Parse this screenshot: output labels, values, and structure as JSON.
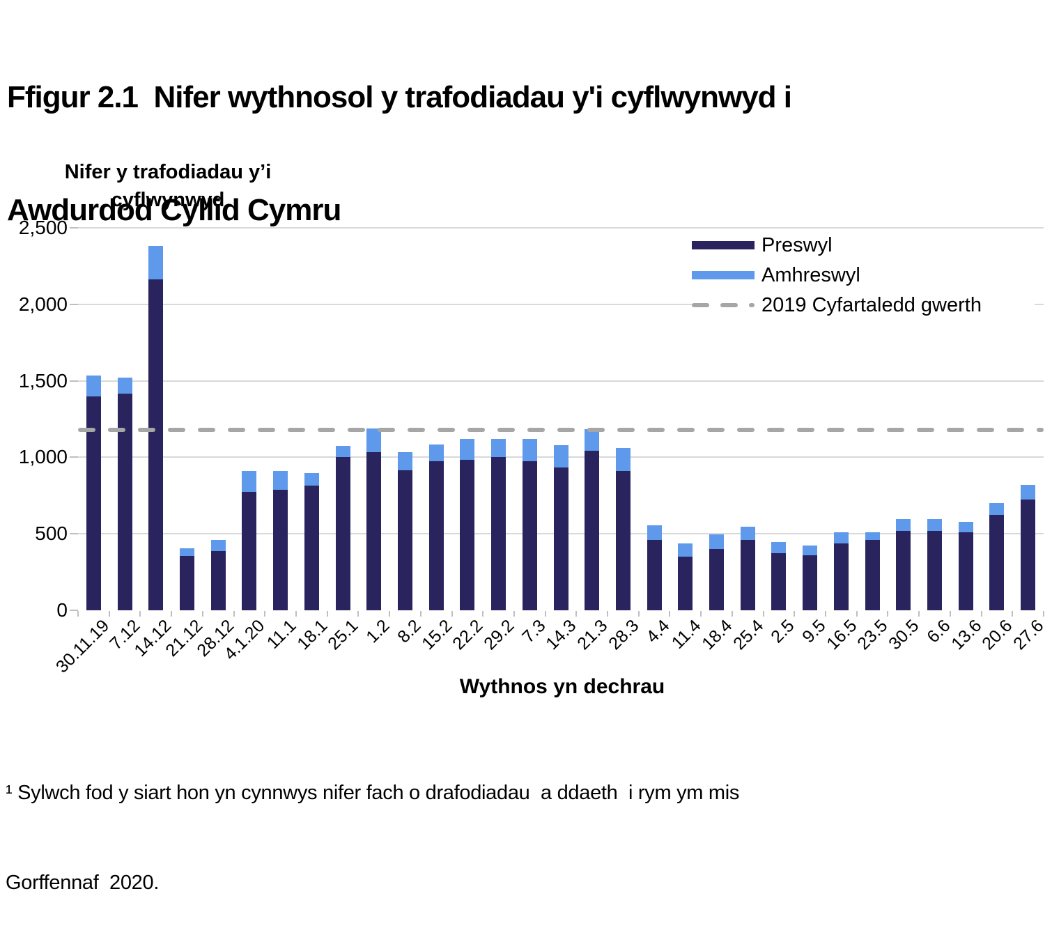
{
  "page": {
    "title_line1": "Ffigur 2.1  Nifer wythnosol y trafodiadau y'i cyflwynwyd i",
    "title_line2": "Awdurdod Cyllid Cymru",
    "footnote_line1": "¹ Sylwch fod y siart hon yn cynnwys nifer fach o drafodiadau  a ddaeth  i rym ym mis",
    "footnote_line2": "Gorffennaf  2020."
  },
  "chart_data": {
    "type": "bar",
    "stacked": true,
    "y_axis_title_line1": "Nifer y trafodiadau y’i",
    "y_axis_title_line2": "cyflwynwyd",
    "x_axis_title": "Wythnos yn dechrau",
    "ylim": [
      0,
      2500
    ],
    "ytick_step": 500,
    "ytick_labels": [
      "0",
      "500",
      "1,000",
      "1,500",
      "2,000",
      "2,500"
    ],
    "grid": true,
    "legend_position": "top-right",
    "categories": [
      "30.11.19",
      "7.12",
      "14.12",
      "21.12",
      "28.12",
      "4.1.20",
      "11.1",
      "18.1",
      "25.1",
      "1.2",
      "8.2",
      "15.2",
      "22.2",
      "29.2",
      "7.3",
      "14.3",
      "21.3",
      "28.3",
      "4.4",
      "11.4",
      "18.4",
      "25.4",
      "2.5",
      "9.5",
      "16.5",
      "23.5",
      "30.5",
      "6.6",
      "13.6",
      "20.6",
      "27.6"
    ],
    "series": [
      {
        "name": "Preswyl",
        "color": "#29245E",
        "values": [
          1400,
          1415,
          2165,
          355,
          385,
          775,
          790,
          815,
          1000,
          1035,
          915,
          975,
          985,
          1000,
          975,
          935,
          1045,
          910,
          460,
          350,
          400,
          460,
          375,
          360,
          435,
          460,
          520,
          520,
          510,
          625,
          725
        ]
      },
      {
        "name": "Amhreswyl",
        "color": "#5E99EB",
        "values": [
          135,
          105,
          215,
          50,
          75,
          135,
          120,
          80,
          75,
          155,
          120,
          110,
          135,
          120,
          145,
          145,
          140,
          150,
          95,
          85,
          95,
          85,
          70,
          65,
          75,
          50,
          75,
          75,
          70,
          75,
          95
        ]
      }
    ],
    "average_line": {
      "name": "2019 Cyfartaledd gwerth",
      "value": 1180,
      "color": "#A6A6A6",
      "style": "dashed"
    },
    "gridline_color": "#D9D9D9",
    "axis_color": "#BFBFBF"
  }
}
